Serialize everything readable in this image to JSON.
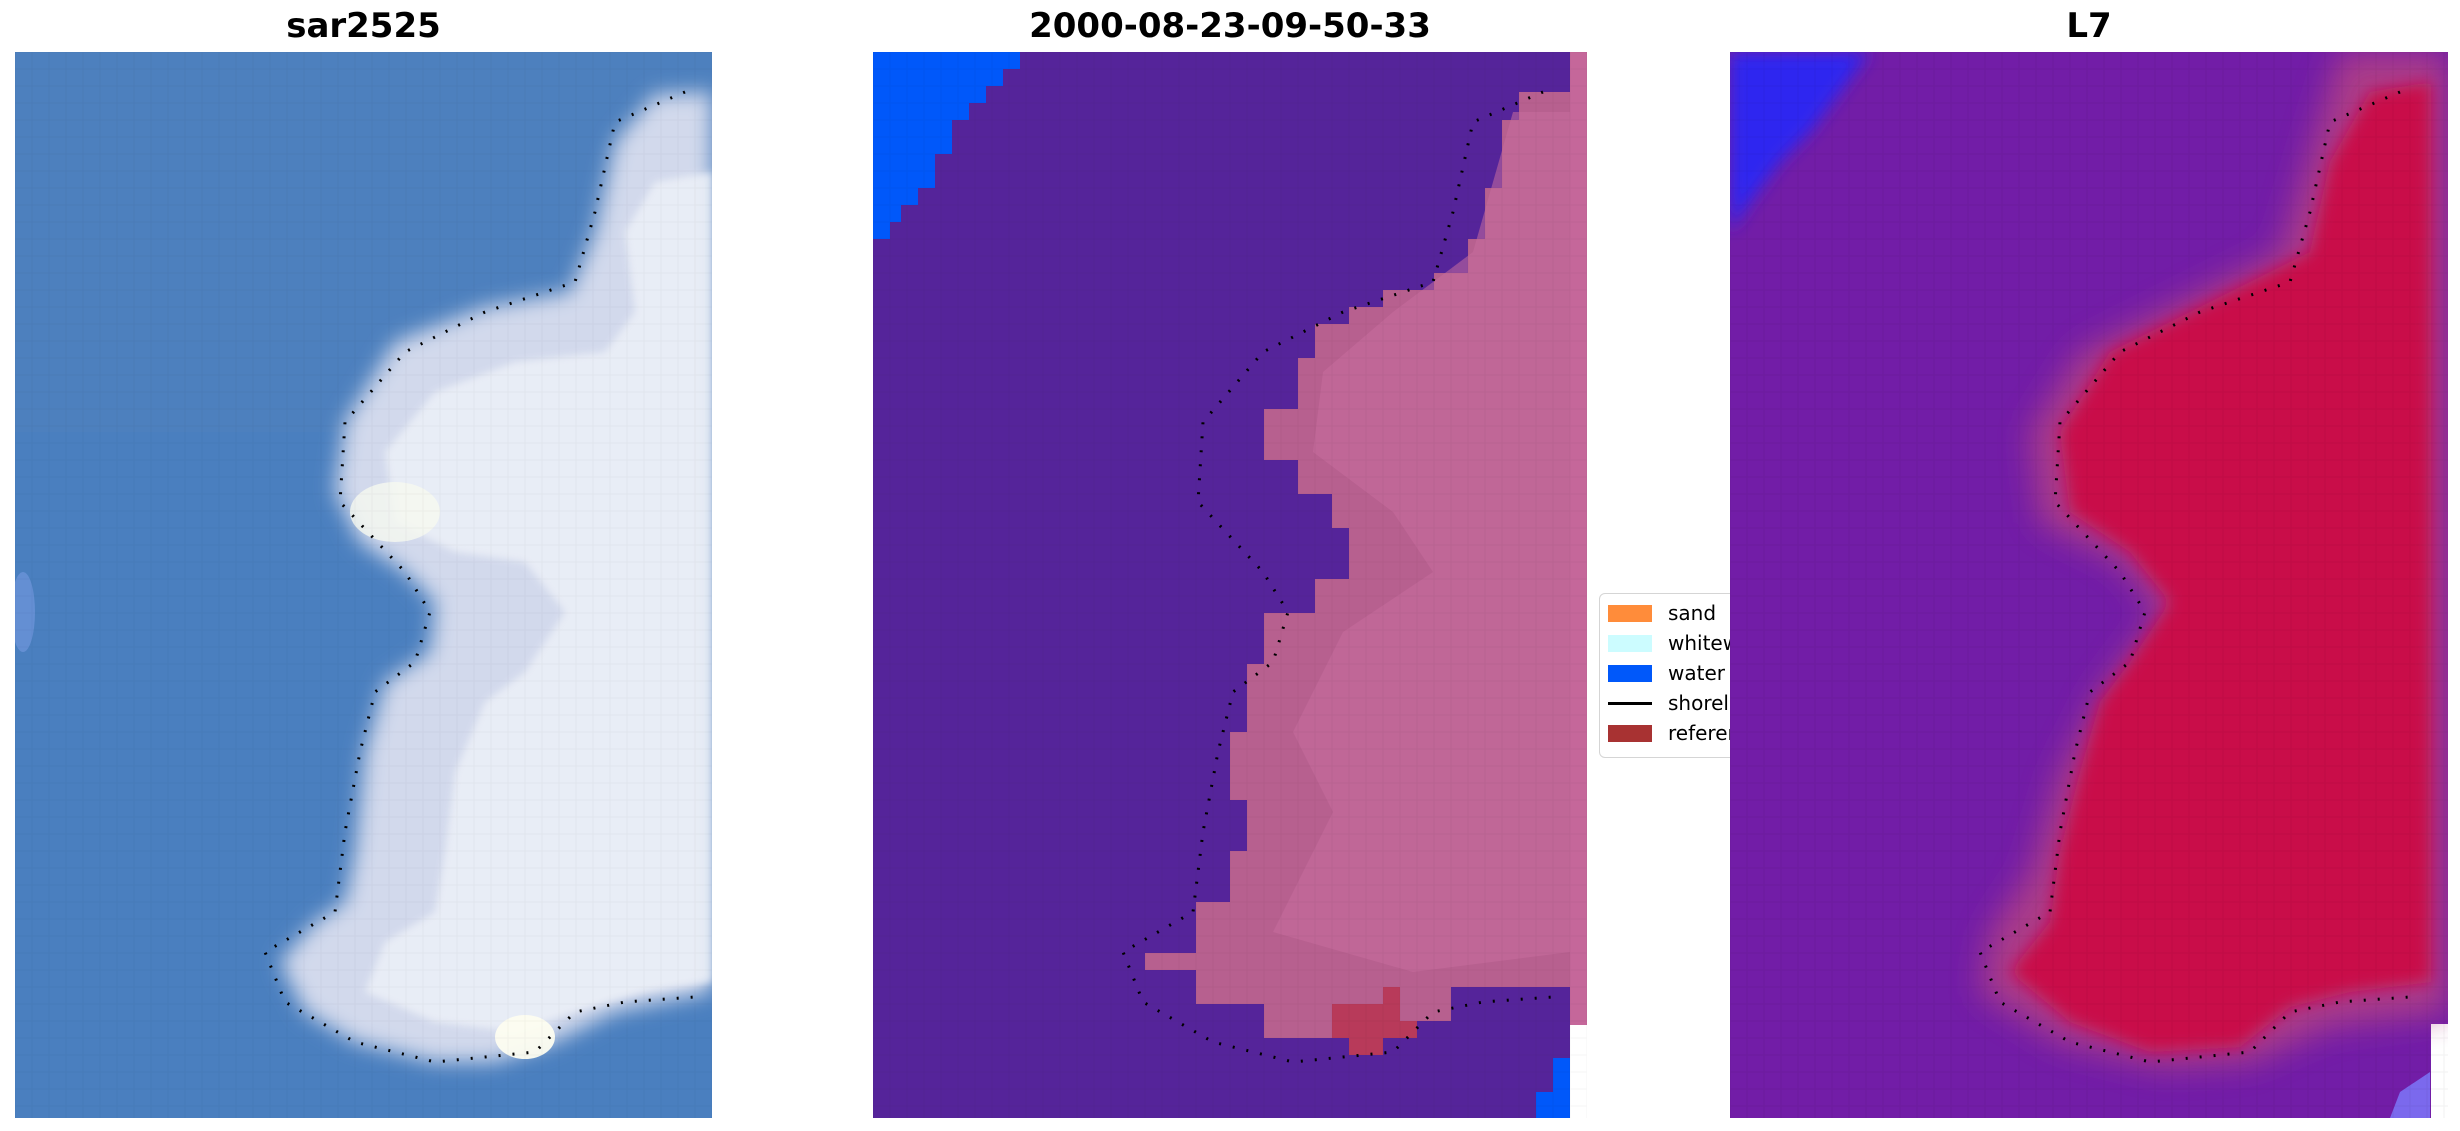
{
  "panels": [
    {
      "title": "sar2525",
      "scheme": "rgb"
    },
    {
      "title": "2000-08-23-09-50-33",
      "scheme": "classified"
    },
    {
      "title": "L7",
      "scheme": "mndwi"
    }
  ],
  "legend": {
    "items": [
      {
        "label": "sand",
        "color": "#ff8c3a",
        "kind": "patch"
      },
      {
        "label": "whitewater",
        "color": "#ccfcff",
        "kind": "patch"
      },
      {
        "label": "water",
        "color": "#0058fa",
        "kind": "patch"
      },
      {
        "label": "shoreline",
        "color": "#000000",
        "kind": "line"
      },
      {
        "label": "reference",
        "color": "#a83232",
        "kind": "patch"
      }
    ]
  },
  "colors": {
    "rgb_water": "#4a7fbf",
    "rgb_land": "#d4dbee",
    "class_bg": "#55249a",
    "class_land": "#b7608f",
    "class_water": "#0058fa",
    "class_ref": "#b83a5a",
    "mndwi_bg": "#6d18a6",
    "mndwi_land": "#c9104a",
    "mndwi_blue": "#2f27f0"
  }
}
